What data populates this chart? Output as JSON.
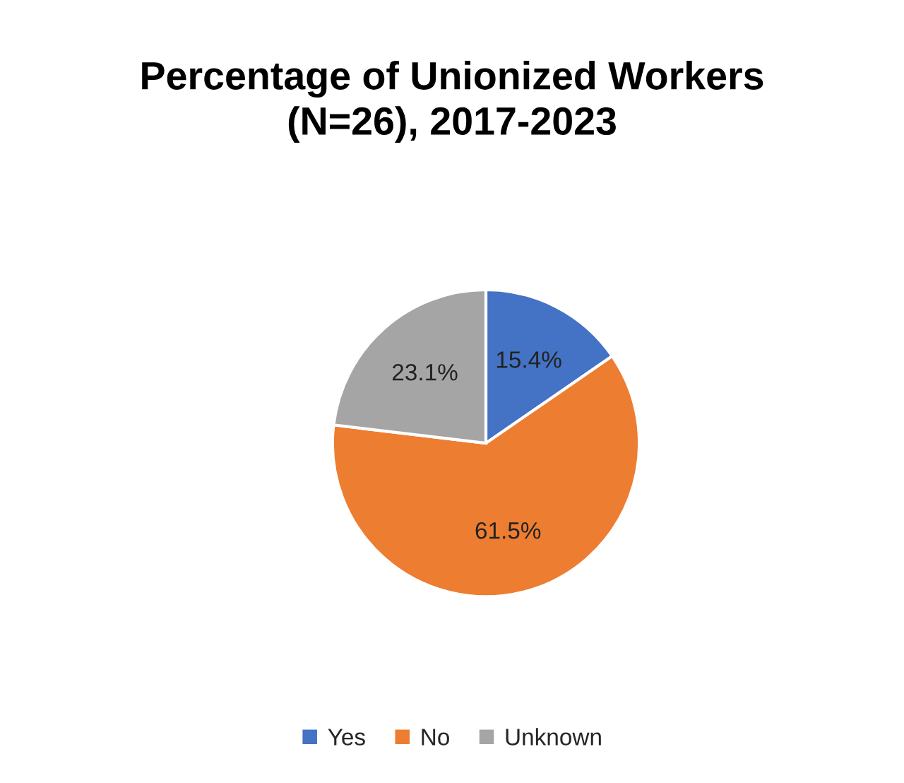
{
  "chart_data": {
    "type": "pie",
    "title": "Percentage of Unionized Workers\n(N=26), 2017-2023",
    "categories": [
      "Yes",
      "No",
      "Unknown"
    ],
    "values": [
      15.4,
      61.5,
      23.1
    ],
    "colors": [
      "#4472c4",
      "#ed7d31",
      "#a5a5a5"
    ],
    "value_labels": [
      "15.4%",
      "61.5%",
      "23.1%"
    ],
    "legend": "bottom"
  }
}
